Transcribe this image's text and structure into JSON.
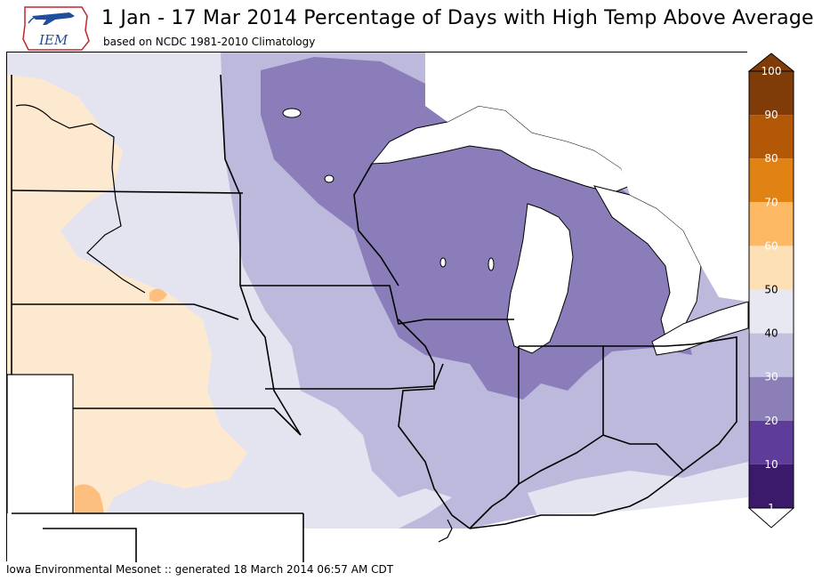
{
  "title": "1 Jan - 17 Mar 2014 Percentage of Days with High Temp Above Average",
  "subtitle": "based on NCDC 1981-2010 Climatology",
  "logo_text": "IEM",
  "footer": "Iowa Environmental Mesonet :: generated 18 March 2014 06:57 AM CDT",
  "legend": {
    "tick_labels": [
      "100",
      "90",
      "80",
      "70",
      "60",
      "50",
      "40",
      "30",
      "20",
      "10",
      "1"
    ],
    "colors": [
      "#7f3b08",
      "#b35806",
      "#e08214",
      "#fdb863",
      "#fee0b6",
      "#e8e8f2",
      "#c3c1e0",
      "#8c7fb8",
      "#5e3c99",
      "#3b1a6b",
      "#2d004b"
    ]
  },
  "colors": {
    "band_50_60": "#fde9d0",
    "band_40_50": "#e4e3f0",
    "band_30_40": "#bdb9dc",
    "band_20_30": "#8a7db9",
    "band_60_70": "#fdbf7e",
    "water": "#ffffff"
  }
}
